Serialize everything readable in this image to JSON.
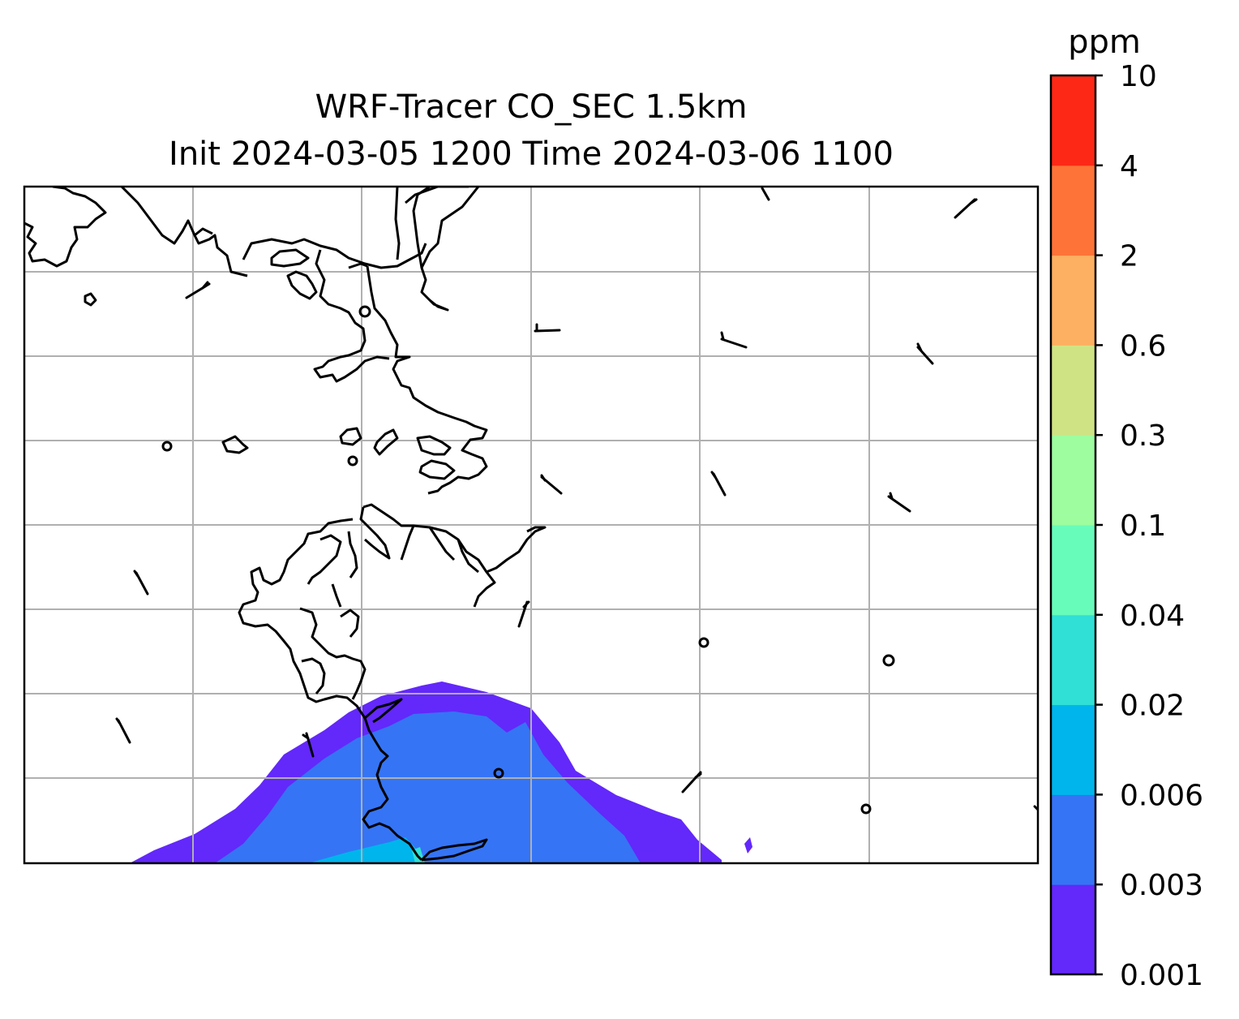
{
  "title_line1": "WRF-Tracer CO_SEC 1.5km",
  "title_line2": "Init 2024-03-05 1200 Time 2024-03-06 1100",
  "colorbar": {
    "unit": "ppm",
    "levels": [
      "0.001",
      "0.003",
      "0.006",
      "0.02",
      "0.04",
      "0.1",
      "0.3",
      "0.6",
      "2",
      "4",
      "10"
    ],
    "colors": [
      "#6328fa",
      "#3574f5",
      "#00b5ec",
      "#30e0d6",
      "#68fcbb",
      "#9dfd9f",
      "#d0e384",
      "#fdb061",
      "#fe7338",
      "#fe2816"
    ]
  },
  "map": {
    "gridlines": true,
    "plume_levels_shown": [
      "0.001",
      "0.003",
      "0.006"
    ]
  }
}
